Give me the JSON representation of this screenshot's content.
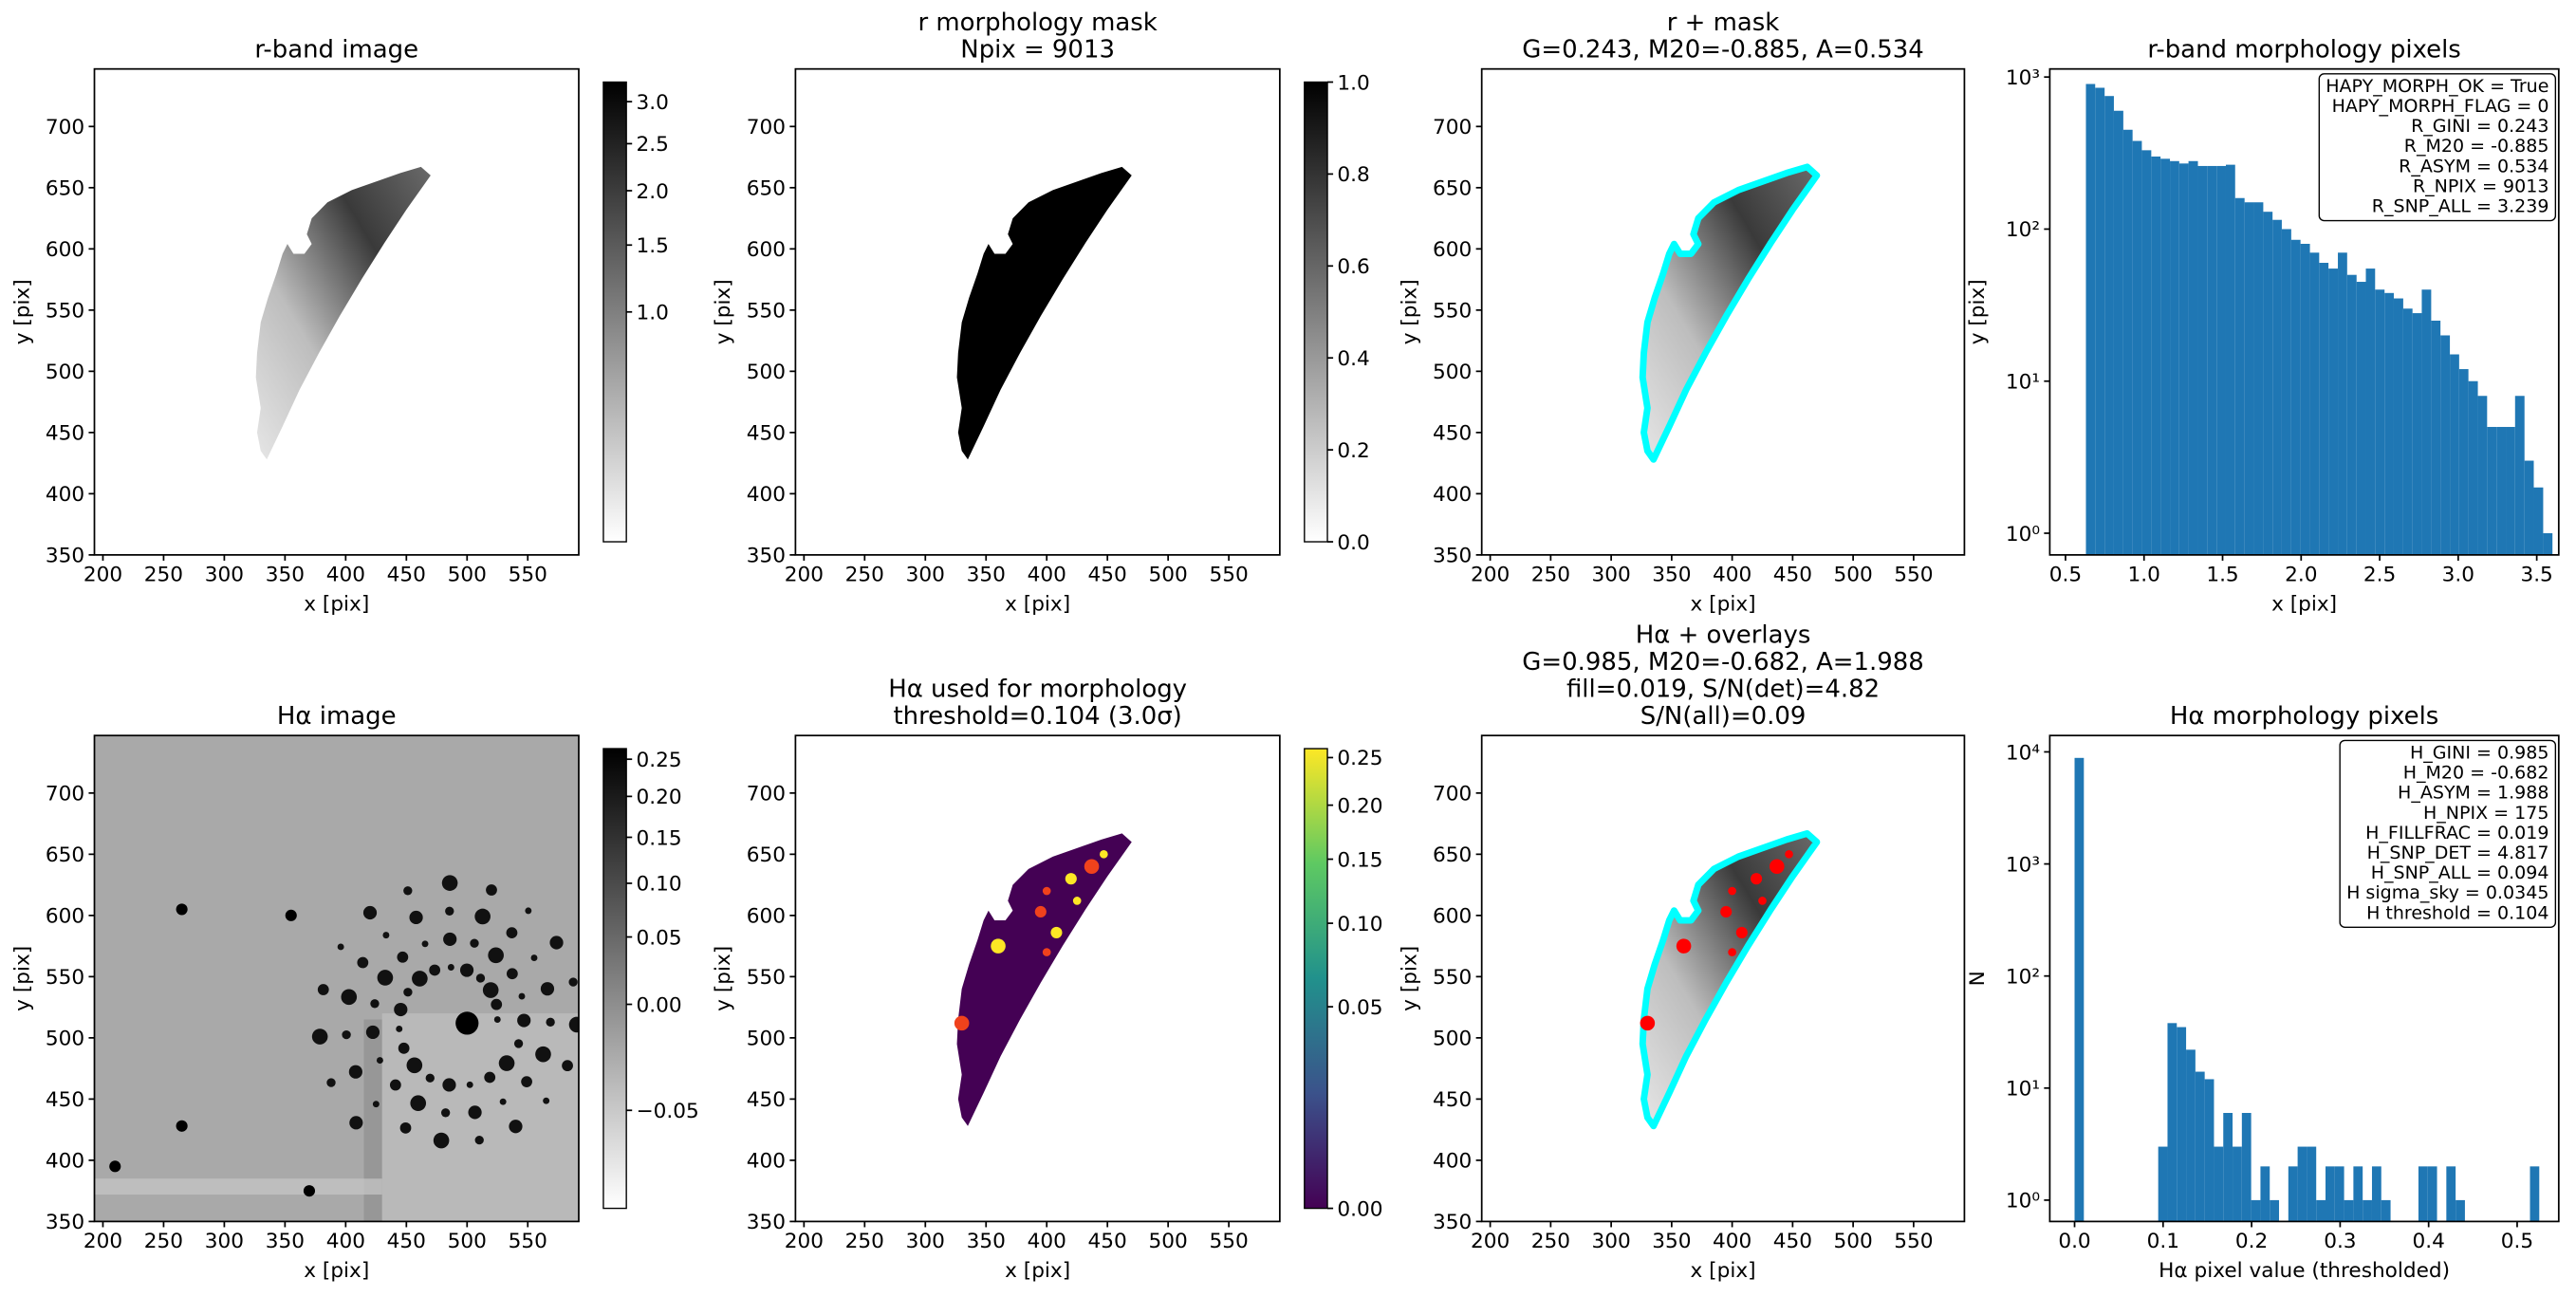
{
  "chart_data": [
    {
      "type": "image",
      "title": "r-band image",
      "xlabel": "x [pix]",
      "ylabel": "y [pix]",
      "xlim": [
        193,
        592
      ],
      "ylim": [
        350,
        747
      ],
      "xticks": [
        200,
        250,
        300,
        350,
        400,
        450,
        500,
        550
      ],
      "yticks": [
        350,
        400,
        450,
        500,
        550,
        600,
        650,
        700
      ],
      "colorbar": {
        "cmap": "gray_r",
        "scale": "sqrt",
        "clim": [
          0.25,
          3.25
        ],
        "ticks": [
          {
            "value": 1,
            "label": "1.0"
          },
          1.5,
          {
            "value": 2,
            "label": "2.0"
          },
          2.5,
          {
            "value": 3,
            "label": "3.0"
          }
        ]
      }
    },
    {
      "type": "image",
      "title": [
        "r morphology mask",
        "Npix = 9013"
      ],
      "xlabel": "x [pix]",
      "ylabel": "y [pix]",
      "xlim": [
        193,
        592
      ],
      "ylim": [
        350,
        747
      ],
      "xticks": [
        200,
        250,
        300,
        350,
        400,
        450,
        500,
        550
      ],
      "yticks": [
        350,
        400,
        450,
        500,
        550,
        600,
        650,
        700
      ],
      "colorbar": {
        "cmap": "gray_r",
        "scale": "linear",
        "clim": [
          0,
          1
        ],
        "ticks": [
          {
            "value": 0,
            "label": "0.0"
          },
          0.2,
          0.4,
          0.6,
          0.8,
          {
            "value": 1,
            "label": "1.0"
          }
        ]
      }
    },
    {
      "type": "image",
      "title": [
        "r + mask",
        "G=0.243, M20=-0.885, A=0.534"
      ],
      "xlabel": "x [pix]",
      "ylabel": "y [pix]",
      "xlim": [
        193,
        592
      ],
      "ylim": [
        350,
        747
      ],
      "xticks": [
        200,
        250,
        300,
        350,
        400,
        450,
        500,
        550
      ],
      "yticks": [
        350,
        400,
        450,
        500,
        550,
        600,
        650,
        700
      ],
      "overlay_color": "#00ffff"
    },
    {
      "type": "histogram",
      "title": "r-band morphology pixels",
      "xlabel": "x [pix]",
      "ylabel": "y [pix]",
      "color": "#1f77b4",
      "xlim": [
        0.4,
        3.64
      ],
      "ylim": [
        0.72,
        1130
      ],
      "yscale": "log",
      "xticks": [
        0.5,
        {
          "value": 1,
          "label": "1.0"
        },
        1.5,
        {
          "value": 2,
          "label": "2.0"
        },
        2.5,
        {
          "value": 3,
          "label": "3.0"
        },
        3.5
      ],
      "yticks": [
        {
          "value": 1,
          "label": "10⁰"
        },
        {
          "value": 10,
          "label": "10¹"
        },
        {
          "value": 100,
          "label": "10²"
        },
        {
          "value": 1000,
          "label": "10³"
        }
      ],
      "bins": [
        0.63,
        0.689,
        0.749,
        0.808,
        0.868,
        0.927,
        0.986,
        1.046,
        1.105,
        1.165,
        1.224,
        1.283,
        1.343,
        1.402,
        1.462,
        1.521,
        1.58,
        1.64,
        1.699,
        1.759,
        1.818,
        1.877,
        1.937,
        1.996,
        2.056,
        2.115,
        2.174,
        2.234,
        2.293,
        2.353,
        2.412,
        2.471,
        2.531,
        2.59,
        2.65,
        2.709,
        2.768,
        2.828,
        2.887,
        2.947,
        3.006,
        3.065,
        3.125,
        3.184,
        3.244,
        3.303,
        3.362,
        3.422,
        3.481,
        3.541,
        3.6
      ],
      "values": [
        900,
        850,
        750,
        600,
        450,
        380,
        330,
        300,
        290,
        280,
        270,
        280,
        260,
        260,
        260,
        265,
        160,
        150,
        150,
        130,
        115,
        100,
        85,
        80,
        70,
        60,
        55,
        70,
        50,
        45,
        55,
        40,
        38,
        35,
        30,
        28,
        40,
        25,
        20,
        15,
        12,
        10,
        8,
        5,
        5,
        5,
        8,
        3,
        2,
        1
      ],
      "annotation": [
        "HAPY_MORPH_OK = True",
        "HAPY_MORPH_FLAG = 0",
        "R_GINI = 0.243",
        "R_M20 = -0.885",
        "R_ASYM = 0.534",
        "R_NPIX = 9013",
        "R_SNP_ALL = 3.239"
      ]
    },
    {
      "type": "image",
      "title": "Hα image",
      "xlabel": "x [pix]",
      "ylabel": "y [pix]",
      "xlim": [
        193,
        592
      ],
      "ylim": [
        350,
        747
      ],
      "xticks": [
        200,
        250,
        300,
        350,
        400,
        450,
        500,
        550
      ],
      "yticks": [
        350,
        400,
        450,
        500,
        550,
        600,
        650,
        700
      ],
      "colorbar": {
        "cmap": "gray_r",
        "scale": "sqrt",
        "clim": [
          -0.065,
          0.265
        ],
        "ticks": [
          {
            "value": -0.05,
            "label": "−0.05"
          },
          {
            "value": 0,
            "label": "0.00"
          },
          0.05,
          {
            "value": 0.1,
            "label": "0.10"
          },
          0.15,
          {
            "value": 0.2,
            "label": "0.20"
          },
          0.25
        ]
      }
    },
    {
      "type": "image",
      "title": [
        "Hα used for morphology",
        "threshold=0.104 (3.0σ)"
      ],
      "xlabel": "x [pix]",
      "ylabel": "y [pix]",
      "xlim": [
        193,
        592
      ],
      "ylim": [
        350,
        747
      ],
      "xticks": [
        200,
        250,
        300,
        350,
        400,
        450,
        500,
        550
      ],
      "yticks": [
        350,
        400,
        450,
        500,
        550,
        600,
        650,
        700
      ],
      "colorbar": {
        "cmap": "viridis",
        "scale": "sqrt",
        "clim": [
          0,
          0.26
        ],
        "ticks": [
          {
            "value": 0,
            "label": "0.00"
          },
          0.05,
          {
            "value": 0.1,
            "label": "0.10"
          },
          0.15,
          {
            "value": 0.2,
            "label": "0.20"
          },
          0.25
        ]
      }
    },
    {
      "type": "image",
      "title": [
        "Hα + overlays",
        "G=0.985, M20=-0.682, A=1.988",
        "fill=0.019, S/N(det)=4.82",
        "S/N(all)=0.09"
      ],
      "xlabel": "x [pix]",
      "ylabel": "y [pix]",
      "xlim": [
        193,
        592
      ],
      "ylim": [
        350,
        747
      ],
      "xticks": [
        200,
        250,
        300,
        350,
        400,
        450,
        500,
        550
      ],
      "yticks": [
        350,
        400,
        450,
        500,
        550,
        600,
        650,
        700
      ],
      "overlay_color": "#00ffff",
      "detection_color": "#ff0000"
    },
    {
      "type": "histogram",
      "title": "Hα morphology pixels",
      "xlabel": "Hα pixel value (thresholded)",
      "ylabel": "N",
      "color": "#1f77b4",
      "xlim": [
        -0.028,
        0.547
      ],
      "ylim": [
        0.645,
        14000
      ],
      "yscale": "log",
      "xticks": [
        {
          "value": 0,
          "label": "0.0"
        },
        0.1,
        0.2,
        0.3,
        0.4,
        0.5
      ],
      "yticks": [
        {
          "value": 1,
          "label": "10⁰"
        },
        {
          "value": 10,
          "label": "10¹"
        },
        {
          "value": 100,
          "label": "10²"
        },
        {
          "value": 1000,
          "label": "10³"
        },
        {
          "value": 10000,
          "label": "10⁴"
        }
      ],
      "bins": [
        0,
        0.0105,
        0.021,
        0.0315,
        0.042,
        0.0525,
        0.063,
        0.0735,
        0.084,
        0.0945,
        0.105,
        0.1155,
        0.126,
        0.1365,
        0.147,
        0.1575,
        0.168,
        0.1785,
        0.189,
        0.1995,
        0.21,
        0.2205,
        0.231,
        0.2415,
        0.252,
        0.2625,
        0.273,
        0.2835,
        0.294,
        0.3045,
        0.315,
        0.3255,
        0.336,
        0.3465,
        0.357,
        0.3675,
        0.378,
        0.3885,
        0.399,
        0.4095,
        0.42,
        0.4305,
        0.441,
        0.4515,
        0.462,
        0.4725,
        0.483,
        0.4935,
        0.504,
        0.5145,
        0.525
      ],
      "values": [
        8838,
        0,
        0,
        0,
        0,
        0,
        0,
        0,
        0,
        3,
        38,
        35,
        22,
        14,
        12,
        3,
        6,
        3,
        6,
        1,
        2,
        1,
        0,
        2,
        3,
        3,
        1,
        2,
        2,
        1,
        2,
        1,
        2,
        1,
        0,
        0,
        0,
        2,
        2,
        0,
        2,
        1,
        0,
        0,
        0,
        0,
        0,
        0,
        0,
        2
      ],
      "annotation": [
        "H_GINI = 0.985",
        "H_M20 = -0.682",
        "H_ASYM = 1.988",
        "H_NPIX = 175",
        "H_FILLFRAC = 0.019",
        "H_SNP_DET = 4.817",
        "H_SNP_ALL = 0.094",
        "H sigma_sky = 0.0345",
        "H threshold = 0.104"
      ]
    }
  ]
}
